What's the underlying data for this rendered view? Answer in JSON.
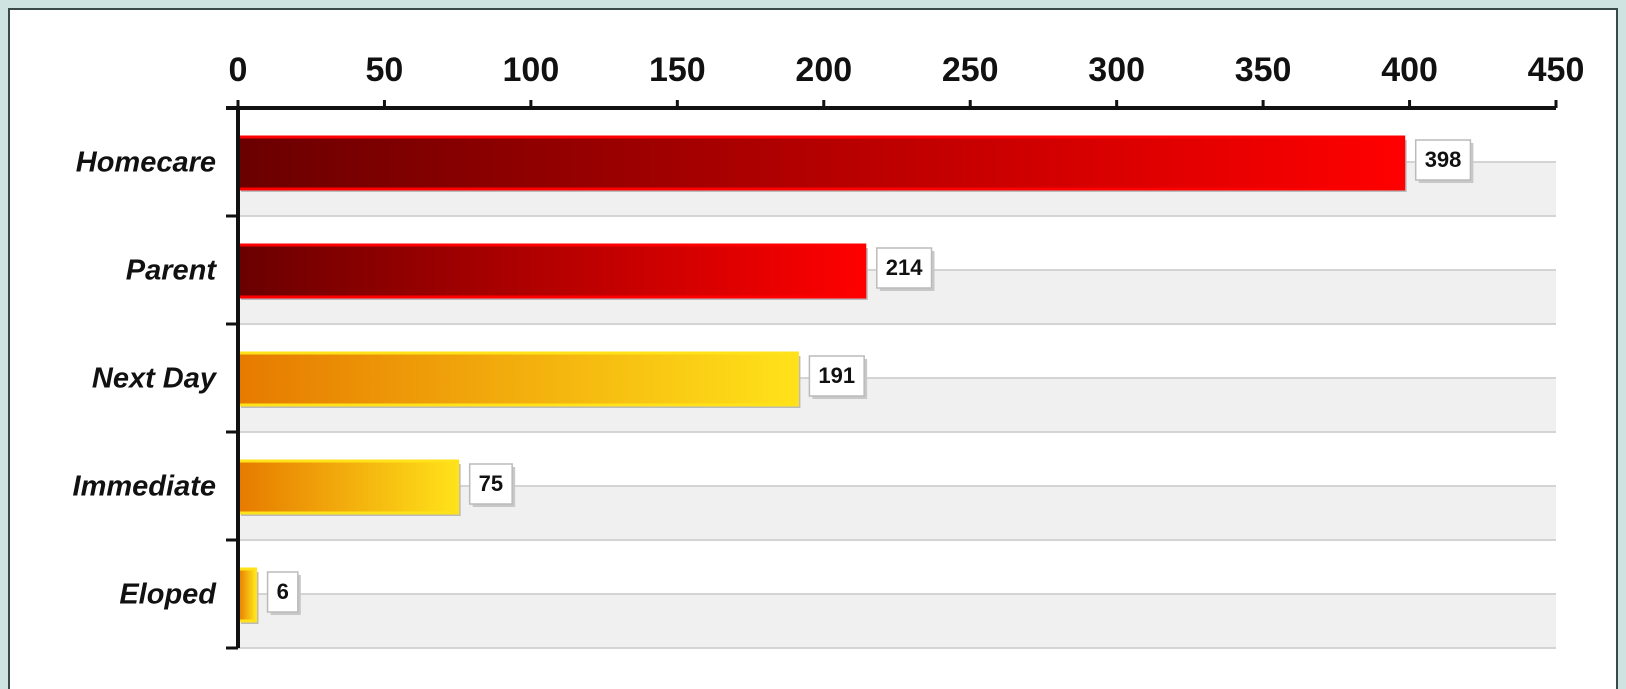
{
  "chart_data": {
    "type": "hbar",
    "categories": [
      "Homecare",
      "Parent",
      "Next Day",
      "Immediate",
      "Eloped"
    ],
    "values": [
      398,
      214,
      191,
      75,
      6
    ],
    "colors": [
      [
        "#6a0000",
        "#ff0000"
      ],
      [
        "#6a0000",
        "#ff0000"
      ],
      [
        "#e67a00",
        "#ffe21a"
      ],
      [
        "#e67a00",
        "#ffe21a"
      ],
      [
        "#e67a00",
        "#ffe21a"
      ]
    ],
    "xlim": [
      0,
      450
    ],
    "xticks": [
      0,
      50,
      100,
      150,
      200,
      250,
      300,
      350,
      400,
      450
    ],
    "grid": true
  }
}
